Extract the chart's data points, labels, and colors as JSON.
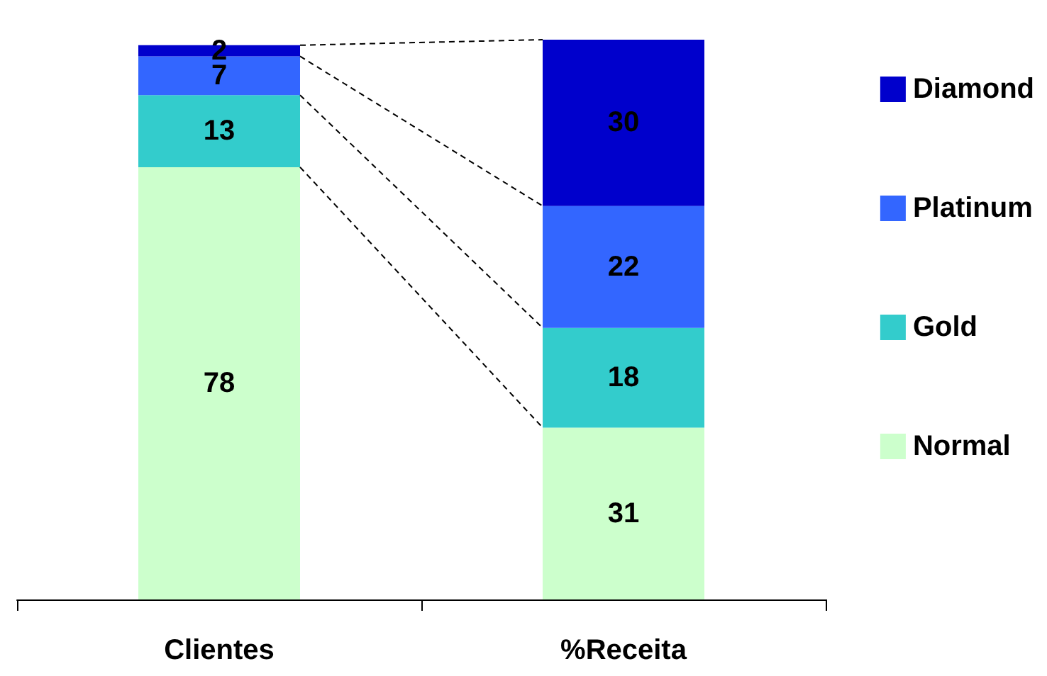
{
  "chart_data": {
    "type": "bar",
    "stacked": true,
    "categories": [
      "Clientes",
      "%Receita"
    ],
    "series": [
      {
        "name": "Normal",
        "color": "#ccffcc",
        "values": [
          78,
          31
        ]
      },
      {
        "name": "Gold",
        "color": "#33cccc",
        "values": [
          13,
          18
        ]
      },
      {
        "name": "Platinum",
        "color": "#3366ff",
        "values": [
          7,
          22
        ]
      },
      {
        "name": "Diamond",
        "color": "#0000cc",
        "values": [
          2,
          30
        ]
      }
    ],
    "data_labels": true,
    "legend": "right"
  }
}
